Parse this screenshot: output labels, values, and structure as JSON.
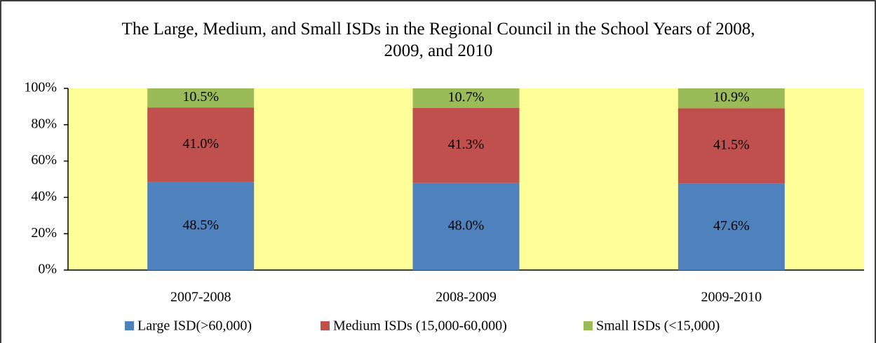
{
  "chart_data": {
    "type": "stacked_bar",
    "title": "The Large, Medium, and Small ISDs in the Regional Council in the School Years of 2008, 2009, and 2010",
    "categories": [
      "2007-2008",
      "2008-2009",
      "2009-2010"
    ],
    "series": [
      {
        "name": "Large ISD(>60,000)",
        "color": "#4f81bd",
        "values": [
          48.5,
          48.0,
          47.6
        ],
        "value_labels": [
          "48.5%",
          "48.0%",
          "47.6%"
        ]
      },
      {
        "name": "Medium ISDs (15,000-60,000)",
        "color": "#c0504d",
        "values": [
          41.0,
          41.3,
          41.5
        ],
        "value_labels": [
          "41.0%",
          "41.3%",
          "41.5%"
        ]
      },
      {
        "name": "Small ISDs (<15,000)",
        "color": "#9bbb59",
        "values": [
          10.5,
          10.7,
          10.9
        ],
        "value_labels": [
          "10.5%",
          "10.7%",
          "10.9%"
        ]
      }
    ],
    "ylim": [
      0,
      100
    ],
    "yticks": [
      {
        "value": 0,
        "label": "0%"
      },
      {
        "value": 20,
        "label": "20%"
      },
      {
        "value": 40,
        "label": "40%"
      },
      {
        "value": 60,
        "label": "60%"
      },
      {
        "value": 80,
        "label": "80%"
      },
      {
        "value": 100,
        "label": "100%"
      }
    ],
    "plot_background": "#ffff99",
    "legend": "bottom"
  }
}
